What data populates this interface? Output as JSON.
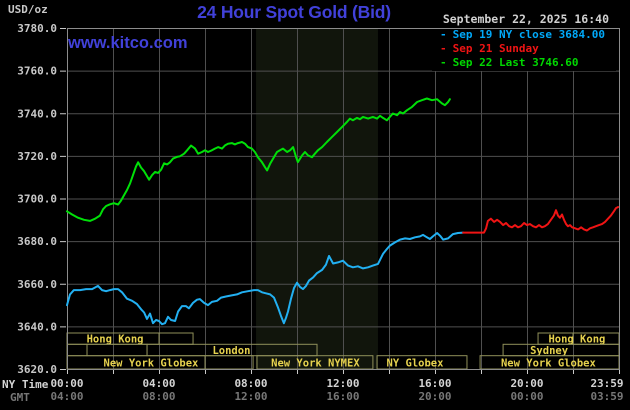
{
  "header": {
    "title": "24 Hour Spot Gold (Bid)",
    "unit_label": "USD/oz",
    "datetime": "September 22, 2025 16:40",
    "watermark": "www.kitco.com"
  },
  "colors": {
    "title_blue": "#4141d9",
    "date_gray": "#d0d0d0",
    "band": "#11150c",
    "grid": "#4f4f4f",
    "border": "#8c8c8c",
    "tick": "#c8c8c8",
    "session_border": "#90905a",
    "session_text": "#e6d24e",
    "sep19_cyan": "#22b0f2",
    "sep21_red": "#f01414",
    "sep22_green": "#00e008"
  },
  "legend": {
    "marker": "-",
    "items": [
      {
        "label": "Sep 19 NY close 3684.00",
        "color": "#00a8f8"
      },
      {
        "label": "Sep 21 Sunday",
        "color": "#f01414"
      },
      {
        "label": "Sep 22 Last 3746.60",
        "color": "#00d800"
      }
    ]
  },
  "axes": {
    "ny_row_label": "NY Time",
    "gmt_row_label": "GMT",
    "x_ticks": [
      {
        "h": 0,
        "ny": "00:00",
        "gmt": "04:00"
      },
      {
        "h": 4,
        "ny": "04:00",
        "gmt": "08:00"
      },
      {
        "h": 8,
        "ny": "08:00",
        "gmt": "12:00"
      },
      {
        "h": 12,
        "ny": "12:00",
        "gmt": "16:00"
      },
      {
        "h": 16,
        "ny": "16:00",
        "gmt": "20:00"
      },
      {
        "h": 20,
        "ny": "20:00",
        "gmt": "00:00"
      },
      {
        "h": 23.97,
        "ny": "23:59",
        "gmt": "03:59"
      }
    ],
    "y_ticks": [
      "3780.0",
      "3760.0",
      "3740.0",
      "3720.0",
      "3700.0",
      "3680.0",
      "3660.0",
      "3640.0",
      "3620.0"
    ],
    "y_tick_values": [
      3780,
      3760,
      3740,
      3720,
      3700,
      3680,
      3660,
      3640,
      3620
    ]
  },
  "sessions": {
    "rows": [
      {
        "boxes": [
          {
            "x0": 0,
            "x1": 5.48,
            "dividers": [
              4
            ],
            "label": "Hong Kong",
            "label_h": 2.09
          },
          {
            "x0": 20.48,
            "x1": 24,
            "dividers": [
              22
            ],
            "label": "Hong Kong",
            "label_h": 22.17
          }
        ]
      },
      {
        "boxes": [
          {
            "x0": 0,
            "x1": 0.87
          },
          {
            "x0": 0.87,
            "x1": 3.48
          },
          {
            "x0": 3.48,
            "x1": 10.87,
            "label": "London",
            "label_h": 7.15
          },
          {
            "x0": 18.96,
            "x1": 24,
            "label": "Sydney",
            "label_h": 20.96
          }
        ]
      },
      {
        "boxes": [
          {
            "x0": 0,
            "x1": 8.09,
            "dividers": [
              6
            ],
            "label": "New York Globex",
            "label_h": 3.65
          },
          {
            "x0": 8.26,
            "x1": 13.3,
            "label": "New York NYMEX",
            "label_h": 10.8
          },
          {
            "x0": 13.48,
            "x1": 17.39,
            "label": "NY Globex",
            "label_h": 15.13
          },
          {
            "x0": 17.96,
            "x1": 24,
            "label": "New York Globex",
            "label_h": 20.93
          }
        ]
      }
    ]
  },
  "chart_data": {
    "type": "line",
    "title": "24 Hour Spot Gold (Bid)",
    "xlabel": "NY Time (hours)",
    "ylabel": "USD/oz",
    "xlim": [
      0,
      24
    ],
    "ylim": [
      3620,
      3780
    ],
    "grid": "on",
    "legend_position": "top-right",
    "highlight_band": {
      "x0": 8.22,
      "x1": 13.52,
      "note": "New York NYMEX session shading"
    },
    "series": [
      {
        "name": "Sep 19 NY close 3684.00",
        "color": "#22b0f2",
        "points": [
          [
            0,
            3650
          ],
          [
            0.13,
            3655
          ],
          [
            0.3,
            3657
          ],
          [
            0.57,
            3657
          ],
          [
            0.83,
            3657.5
          ],
          [
            1.09,
            3657.5
          ],
          [
            1.35,
            3659
          ],
          [
            1.52,
            3657
          ],
          [
            1.7,
            3656.5
          ],
          [
            1.87,
            3657
          ],
          [
            2.04,
            3657.5
          ],
          [
            2.22,
            3657.5
          ],
          [
            2.39,
            3656
          ],
          [
            2.61,
            3653
          ],
          [
            2.83,
            3652
          ],
          [
            3.04,
            3650.5
          ],
          [
            3.22,
            3648
          ],
          [
            3.35,
            3646.5
          ],
          [
            3.48,
            3643.5
          ],
          [
            3.61,
            3646
          ],
          [
            3.74,
            3641.5
          ],
          [
            3.87,
            3643
          ],
          [
            4,
            3642.5
          ],
          [
            4.13,
            3641
          ],
          [
            4.26,
            3641.5
          ],
          [
            4.39,
            3644.5
          ],
          [
            4.52,
            3643
          ],
          [
            4.7,
            3642.5
          ],
          [
            4.83,
            3647
          ],
          [
            5,
            3649.5
          ],
          [
            5.17,
            3649.5
          ],
          [
            5.3,
            3648.5
          ],
          [
            5.48,
            3651
          ],
          [
            5.65,
            3652.5
          ],
          [
            5.78,
            3652.8
          ],
          [
            5.96,
            3651
          ],
          [
            6.13,
            3650
          ],
          [
            6.3,
            3651.5
          ],
          [
            6.52,
            3652
          ],
          [
            6.7,
            3653.5
          ],
          [
            6.91,
            3654
          ],
          [
            7.13,
            3654.5
          ],
          [
            7.39,
            3655
          ],
          [
            7.61,
            3656
          ],
          [
            7.87,
            3656.5
          ],
          [
            8.13,
            3657
          ],
          [
            8.3,
            3657
          ],
          [
            8.48,
            3656
          ],
          [
            8.65,
            3655.5
          ],
          [
            8.83,
            3655
          ],
          [
            9,
            3653.5
          ],
          [
            9.17,
            3649
          ],
          [
            9.3,
            3645
          ],
          [
            9.43,
            3641.5
          ],
          [
            9.52,
            3644
          ],
          [
            9.61,
            3647
          ],
          [
            9.74,
            3653
          ],
          [
            9.87,
            3658
          ],
          [
            10,
            3660.5
          ],
          [
            10.13,
            3658.5
          ],
          [
            10.26,
            3657.5
          ],
          [
            10.39,
            3659
          ],
          [
            10.52,
            3661.5
          ],
          [
            10.7,
            3663
          ],
          [
            10.87,
            3665
          ],
          [
            11.09,
            3666.5
          ],
          [
            11.26,
            3669
          ],
          [
            11.39,
            3673
          ],
          [
            11.57,
            3669.5
          ],
          [
            11.78,
            3670
          ],
          [
            12,
            3670.8
          ],
          [
            12.22,
            3668.5
          ],
          [
            12.43,
            3667.7
          ],
          [
            12.65,
            3668.2
          ],
          [
            12.87,
            3667.2
          ],
          [
            13.09,
            3667.7
          ],
          [
            13.3,
            3668.5
          ],
          [
            13.52,
            3669.3
          ],
          [
            13.74,
            3674
          ],
          [
            13.91,
            3676.3
          ],
          [
            14.04,
            3677.9
          ],
          [
            14.26,
            3679.4
          ],
          [
            14.48,
            3680.7
          ],
          [
            14.7,
            3681.3
          ],
          [
            14.91,
            3681
          ],
          [
            15.13,
            3681.8
          ],
          [
            15.35,
            3682.2
          ],
          [
            15.48,
            3682.9
          ],
          [
            15.65,
            3681.8
          ],
          [
            15.78,
            3681
          ],
          [
            15.91,
            3682.2
          ],
          [
            16.09,
            3683.8
          ],
          [
            16.22,
            3682.5
          ],
          [
            16.35,
            3680.7
          ],
          [
            16.57,
            3681.3
          ],
          [
            16.78,
            3683.3
          ],
          [
            17,
            3683.8
          ],
          [
            17.22,
            3684
          ]
        ]
      },
      {
        "name": "Sep 21 Sunday",
        "color": "#f01414",
        "points": [
          [
            17.22,
            3684
          ],
          [
            18.13,
            3684
          ],
          [
            18.22,
            3686
          ],
          [
            18.3,
            3689.5
          ],
          [
            18.43,
            3690.5
          ],
          [
            18.57,
            3689
          ],
          [
            18.7,
            3690
          ],
          [
            18.83,
            3689
          ],
          [
            18.96,
            3687.5
          ],
          [
            19.09,
            3688.5
          ],
          [
            19.22,
            3687
          ],
          [
            19.35,
            3686.5
          ],
          [
            19.48,
            3687.5
          ],
          [
            19.61,
            3686.5
          ],
          [
            19.74,
            3687
          ],
          [
            19.87,
            3688.5
          ],
          [
            20,
            3687.5
          ],
          [
            20.13,
            3688
          ],
          [
            20.26,
            3687
          ],
          [
            20.39,
            3686.5
          ],
          [
            20.52,
            3687.5
          ],
          [
            20.65,
            3686.5
          ],
          [
            20.78,
            3687
          ],
          [
            20.91,
            3688
          ],
          [
            21.04,
            3690
          ],
          [
            21.17,
            3692
          ],
          [
            21.26,
            3694.5
          ],
          [
            21.35,
            3692
          ],
          [
            21.43,
            3691
          ],
          [
            21.52,
            3692.5
          ],
          [
            21.61,
            3690
          ],
          [
            21.7,
            3688
          ],
          [
            21.78,
            3687
          ],
          [
            21.87,
            3687.5
          ],
          [
            21.96,
            3686.5
          ],
          [
            22.09,
            3686
          ],
          [
            22.22,
            3685.5
          ],
          [
            22.35,
            3686.5
          ],
          [
            22.48,
            3685.5
          ],
          [
            22.61,
            3685
          ],
          [
            22.74,
            3686
          ],
          [
            22.87,
            3686.5
          ],
          [
            23,
            3687
          ],
          [
            23.13,
            3687.5
          ],
          [
            23.26,
            3688
          ],
          [
            23.39,
            3689
          ],
          [
            23.52,
            3690.5
          ],
          [
            23.65,
            3692
          ],
          [
            23.78,
            3694
          ],
          [
            23.87,
            3695.5
          ],
          [
            23.96,
            3696
          ]
        ]
      },
      {
        "name": "Sep 22 Last 3746.60",
        "color": "#00e008",
        "points": [
          [
            0,
            3694
          ],
          [
            0.22,
            3692.5
          ],
          [
            0.48,
            3691
          ],
          [
            0.74,
            3690
          ],
          [
            1,
            3689.5
          ],
          [
            1.22,
            3690.5
          ],
          [
            1.43,
            3692
          ],
          [
            1.57,
            3695
          ],
          [
            1.7,
            3696.5
          ],
          [
            1.87,
            3697.3
          ],
          [
            2.04,
            3697.8
          ],
          [
            2.22,
            3697.2
          ],
          [
            2.35,
            3699
          ],
          [
            2.48,
            3701.5
          ],
          [
            2.61,
            3704
          ],
          [
            2.74,
            3707
          ],
          [
            2.87,
            3711
          ],
          [
            3,
            3715
          ],
          [
            3.09,
            3717
          ],
          [
            3.22,
            3714.5
          ],
          [
            3.35,
            3712.8
          ],
          [
            3.48,
            3710.5
          ],
          [
            3.57,
            3708.8
          ],
          [
            3.7,
            3711
          ],
          [
            3.83,
            3712.5
          ],
          [
            3.96,
            3712
          ],
          [
            4.09,
            3713.5
          ],
          [
            4.22,
            3716.5
          ],
          [
            4.35,
            3716
          ],
          [
            4.48,
            3717
          ],
          [
            4.61,
            3718.7
          ],
          [
            4.78,
            3719.5
          ],
          [
            4.91,
            3719.8
          ],
          [
            5.09,
            3721
          ],
          [
            5.22,
            3722.6
          ],
          [
            5.39,
            3724.8
          ],
          [
            5.57,
            3723.4
          ],
          [
            5.7,
            3721
          ],
          [
            5.87,
            3721.8
          ],
          [
            6,
            3722.6
          ],
          [
            6.13,
            3721.8
          ],
          [
            6.3,
            3722.6
          ],
          [
            6.43,
            3723.4
          ],
          [
            6.57,
            3724.1
          ],
          [
            6.74,
            3723.4
          ],
          [
            6.87,
            3724.9
          ],
          [
            7,
            3725.7
          ],
          [
            7.17,
            3726
          ],
          [
            7.3,
            3725.4
          ],
          [
            7.43,
            3726
          ],
          [
            7.61,
            3726.5
          ],
          [
            7.74,
            3725.7
          ],
          [
            7.87,
            3724.1
          ],
          [
            8.04,
            3723.4
          ],
          [
            8.17,
            3721.8
          ],
          [
            8.3,
            3719.4
          ],
          [
            8.48,
            3717
          ],
          [
            8.61,
            3714.7
          ],
          [
            8.7,
            3713.2
          ],
          [
            8.83,
            3716.3
          ],
          [
            8.96,
            3718.7
          ],
          [
            9.13,
            3721.8
          ],
          [
            9.26,
            3722.6
          ],
          [
            9.39,
            3723.4
          ],
          [
            9.57,
            3721.8
          ],
          [
            9.7,
            3722.6
          ],
          [
            9.83,
            3724.1
          ],
          [
            9.96,
            3719.4
          ],
          [
            10.04,
            3717.1
          ],
          [
            10.22,
            3720.2
          ],
          [
            10.35,
            3721.8
          ],
          [
            10.48,
            3720.2
          ],
          [
            10.65,
            3719.4
          ],
          [
            10.78,
            3721
          ],
          [
            10.91,
            3722.6
          ],
          [
            11.09,
            3724.1
          ],
          [
            11.3,
            3726.5
          ],
          [
            11.52,
            3728.9
          ],
          [
            11.74,
            3731.2
          ],
          [
            11.96,
            3733.6
          ],
          [
            12.17,
            3735.9
          ],
          [
            12.3,
            3737.5
          ],
          [
            12.43,
            3736.7
          ],
          [
            12.61,
            3737.8
          ],
          [
            12.74,
            3737.2
          ],
          [
            12.87,
            3738.3
          ],
          [
            13.09,
            3737.5
          ],
          [
            13.3,
            3738.3
          ],
          [
            13.48,
            3737.5
          ],
          [
            13.61,
            3738.8
          ],
          [
            13.74,
            3737.8
          ],
          [
            13.91,
            3736.7
          ],
          [
            14.04,
            3738.3
          ],
          [
            14.17,
            3739.9
          ],
          [
            14.35,
            3739.1
          ],
          [
            14.48,
            3740.6
          ],
          [
            14.61,
            3739.9
          ],
          [
            14.78,
            3741.4
          ],
          [
            15,
            3743
          ],
          [
            15.22,
            3745.3
          ],
          [
            15.43,
            3746.1
          ],
          [
            15.65,
            3746.9
          ],
          [
            15.87,
            3746.1
          ],
          [
            16.09,
            3746.6
          ],
          [
            16.3,
            3744.6
          ],
          [
            16.43,
            3743.8
          ],
          [
            16.57,
            3745.3
          ],
          [
            16.65,
            3746.6
          ]
        ]
      }
    ]
  }
}
